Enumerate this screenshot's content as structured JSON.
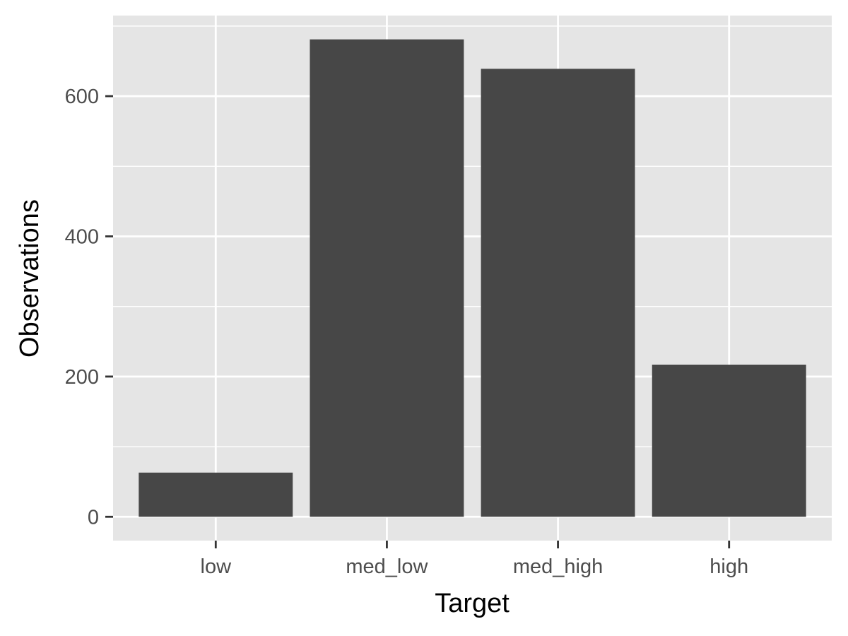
{
  "chart_data": {
    "type": "bar",
    "categories": [
      "low",
      "med_low",
      "med_high",
      "high"
    ],
    "values": [
      63,
      681,
      639,
      217
    ],
    "title": "",
    "xlabel": "Target",
    "ylabel": "Observations",
    "ylim": [
      -34,
      715
    ],
    "yticks": [
      0,
      200,
      400,
      600
    ],
    "y_minor_ticks": [
      100,
      300,
      500,
      700
    ],
    "grid": true,
    "legend": "none"
  },
  "colors": {
    "panel_background": "#e5e5e5",
    "gridline": "#ffffff",
    "bar_fill": "#474747",
    "tick_mark": "#333333"
  }
}
